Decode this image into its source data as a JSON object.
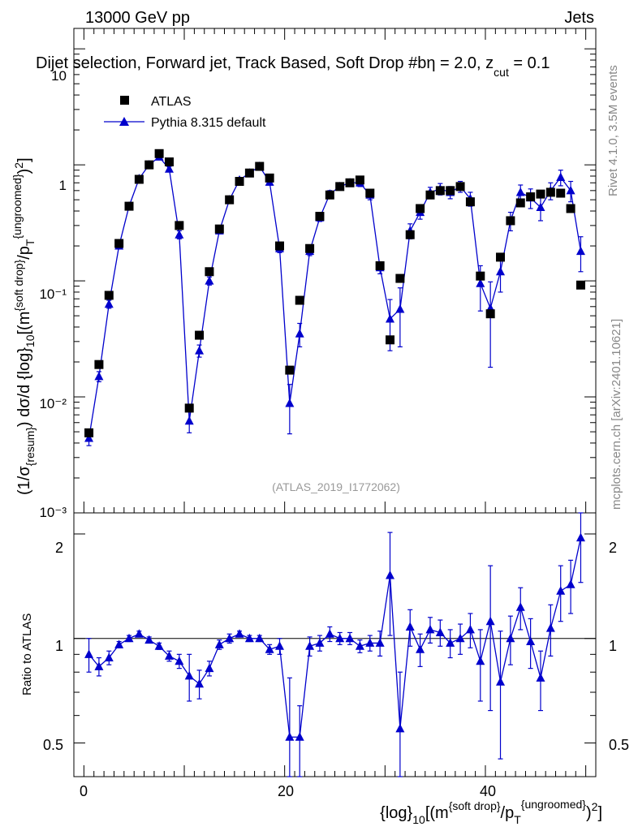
{
  "header": {
    "energy_label": "13000 GeV pp",
    "category_label": "Jets",
    "selection_title": "Dijet selection, Forward jet, Track Based, Soft Drop #b",
    "selection_params": "η = 2.0, z",
    "selection_sub": "cut",
    "selection_tail": " = 0.1"
  },
  "side_labels": {
    "rivet": "Rivet 4.1.0,  3.5M events",
    "mcplots": "mcplots.cern.ch [arXiv:2401.10621]"
  },
  "analysis_id": "(ATLAS_2019_I1772062)",
  "legend": [
    {
      "label": "ATLAS",
      "color": "#000000",
      "marker": "square"
    },
    {
      "label": "Pythia 8.315 default",
      "color": "#0000cc",
      "marker": "triangle"
    }
  ],
  "axes": {
    "main_ylabel": "(1/σ{resum}) dσ/d {log}10[(m{soft drop}/p T{ungroomed})²]",
    "ratio_ylabel": "Ratio to ATLAS",
    "xlabel": "{log}10[(m{soft drop}/p T{ungroomed})²]",
    "main_yticks": [
      "10⁻³",
      "10⁻²",
      "10⁻¹",
      "1",
      "10"
    ],
    "ratio_yticks": [
      "0.5",
      "1",
      "2"
    ],
    "xticks": [
      "0",
      "20",
      "40"
    ]
  },
  "chart_data": {
    "type": "scatter",
    "x": [
      0.5,
      1.5,
      2.5,
      3.5,
      4.5,
      5.5,
      6.5,
      7.5,
      8.5,
      9.5,
      10.5,
      11.5,
      12.5,
      13.5,
      14.5,
      15.5,
      16.5,
      17.5,
      18.5,
      19.5,
      20.5,
      21.5,
      22.5,
      23.5,
      24.5,
      25.5,
      26.5,
      27.5,
      28.5,
      29.5,
      30.5,
      31.5,
      32.5,
      33.5,
      34.5,
      35.5,
      36.5,
      37.5,
      38.5,
      39.5,
      40.5,
      41.5,
      42.5,
      43.5,
      44.5,
      45.5,
      46.5,
      47.5,
      48.5,
      49.5
    ],
    "series": [
      {
        "name": "ATLAS",
        "values": [
          0.0049,
          0.019,
          0.075,
          0.21,
          0.44,
          0.75,
          1.0,
          1.25,
          1.06,
          0.3,
          0.008,
          0.034,
          0.12,
          0.28,
          0.5,
          0.72,
          0.85,
          0.97,
          0.77,
          0.2,
          0.017,
          0.068,
          0.19,
          0.36,
          0.55,
          0.65,
          0.7,
          0.74,
          0.57,
          0.135,
          0.031,
          0.105,
          0.25,
          0.42,
          0.55,
          0.6,
          0.6,
          0.65,
          0.48,
          0.11,
          0.052,
          0.16,
          0.33,
          0.47,
          0.53,
          0.56,
          0.58,
          0.57,
          0.42,
          0.092
        ]
      },
      {
        "name": "Pythia 8.315 default",
        "values": [
          0.0044,
          0.015,
          0.063,
          0.2,
          0.44,
          0.76,
          1.0,
          1.17,
          0.92,
          0.25,
          0.0062,
          0.025,
          0.1,
          0.27,
          0.5,
          0.74,
          0.85,
          0.97,
          0.71,
          0.19,
          0.0088,
          0.035,
          0.18,
          0.35,
          0.56,
          0.65,
          0.7,
          0.7,
          0.55,
          0.13,
          0.047,
          0.057,
          0.27,
          0.39,
          0.58,
          0.62,
          0.58,
          0.65,
          0.51,
          0.095,
          0.058,
          0.12,
          0.33,
          0.58,
          0.52,
          0.43,
          0.6,
          0.78,
          0.6,
          0.18
        ],
        "errors": [
          0.0006,
          0.0015,
          0.005,
          0.012,
          0.02,
          0.03,
          0.04,
          0.05,
          0.05,
          0.02,
          0.0013,
          0.003,
          0.008,
          0.015,
          0.03,
          0.04,
          0.04,
          0.05,
          0.04,
          0.015,
          0.004,
          0.008,
          0.015,
          0.025,
          0.04,
          0.04,
          0.05,
          0.05,
          0.05,
          0.015,
          0.022,
          0.03,
          0.04,
          0.05,
          0.06,
          0.07,
          0.07,
          0.07,
          0.07,
          0.04,
          0.04,
          0.04,
          0.06,
          0.09,
          0.1,
          0.1,
          0.1,
          0.12,
          0.12,
          0.06
        ],
        "ratio": [
          0.9,
          0.83,
          0.88,
          0.96,
          1.0,
          1.03,
          0.99,
          0.95,
          0.89,
          0.86,
          0.78,
          0.74,
          0.82,
          0.96,
          1.0,
          1.03,
          1.0,
          1.0,
          0.93,
          0.95,
          0.52,
          0.52,
          0.95,
          0.97,
          1.03,
          1.0,
          1.0,
          0.95,
          0.97,
          0.97,
          1.52,
          0.55,
          1.08,
          0.93,
          1.06,
          1.04,
          0.97,
          1.0,
          1.06,
          0.86,
          1.12,
          0.75,
          1.0,
          1.23,
          0.98,
          0.77,
          1.07,
          1.37,
          1.43,
          1.95
        ],
        "ratio_errors": [
          0.1,
          0.05,
          0.04,
          0.02,
          0.02,
          0.02,
          0.02,
          0.02,
          0.03,
          0.04,
          0.12,
          0.07,
          0.04,
          0.03,
          0.03,
          0.02,
          0.02,
          0.02,
          0.03,
          0.05,
          0.25,
          0.12,
          0.06,
          0.05,
          0.05,
          0.04,
          0.04,
          0.04,
          0.05,
          0.08,
          0.5,
          0.25,
          0.13,
          0.1,
          0.09,
          0.09,
          0.09,
          0.1,
          0.12,
          0.2,
          0.5,
          0.3,
          0.16,
          0.17,
          0.16,
          0.15,
          0.18,
          0.25,
          0.25,
          0.5
        ]
      }
    ],
    "xlim": [
      -1,
      51
    ],
    "ylim": [
      0.001,
      15
    ],
    "ratio_ylim": [
      0.4,
      2.3
    ],
    "xlabel": "{log}10[(m{soft drop}/p T{ungroomed})²]",
    "ylabel": "(1/σ{resum}) dσ/d {log}10[(m{soft drop}/p T{ungroomed})²]",
    "legend_position": "top-left"
  }
}
